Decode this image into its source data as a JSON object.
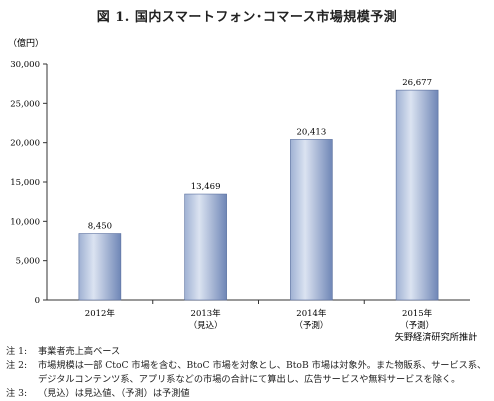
{
  "chart_data": {
    "type": "bar",
    "title": "図 1. 国内スマートフォン･コマース市場規模予測",
    "ylabel": "（億円）",
    "xlabel": "",
    "categories": [
      {
        "year": "2012年",
        "sub": ""
      },
      {
        "year": "2013年",
        "sub": "（見込）"
      },
      {
        "year": "2014年",
        "sub": "（予測）"
      },
      {
        "year": "2015年",
        "sub": "（予測）"
      }
    ],
    "values": [
      8450,
      13469,
      20413,
      26677
    ],
    "value_labels": [
      "8,450",
      "13,469",
      "20,413",
      "26,677"
    ],
    "ylim": [
      0,
      30000
    ],
    "yticks": [
      0,
      5000,
      10000,
      15000,
      20000,
      25000,
      30000
    ],
    "ytick_labels": [
      "0",
      "5,000",
      "10,000",
      "15,000",
      "20,000",
      "25,000",
      "30,000"
    ],
    "grid": false,
    "legend": "none",
    "source": "矢野経済研究所推計",
    "colors": {
      "bar_light": "#dbe3f1",
      "bar_mid": "#9fb1d3",
      "bar_dark": "#6f86b6",
      "bar_edge": "#5a6f9e"
    }
  },
  "notes": [
    {
      "label": "注 1:",
      "text": "事業者売上高ベース"
    },
    {
      "label": "注 2:",
      "text": "市場規模は一部 CtoC 市場を含む、BtoC 市場を対象とし、BtoB 市場は対象外。また物販系、サービス系、デジタルコンテンツ系、アプリ系などの市場の合計にて算出し、広告サービスや無料サービスを除く。"
    },
    {
      "label": "注 3:",
      "text": "（見込）は見込値、（予測）は予測値"
    }
  ]
}
